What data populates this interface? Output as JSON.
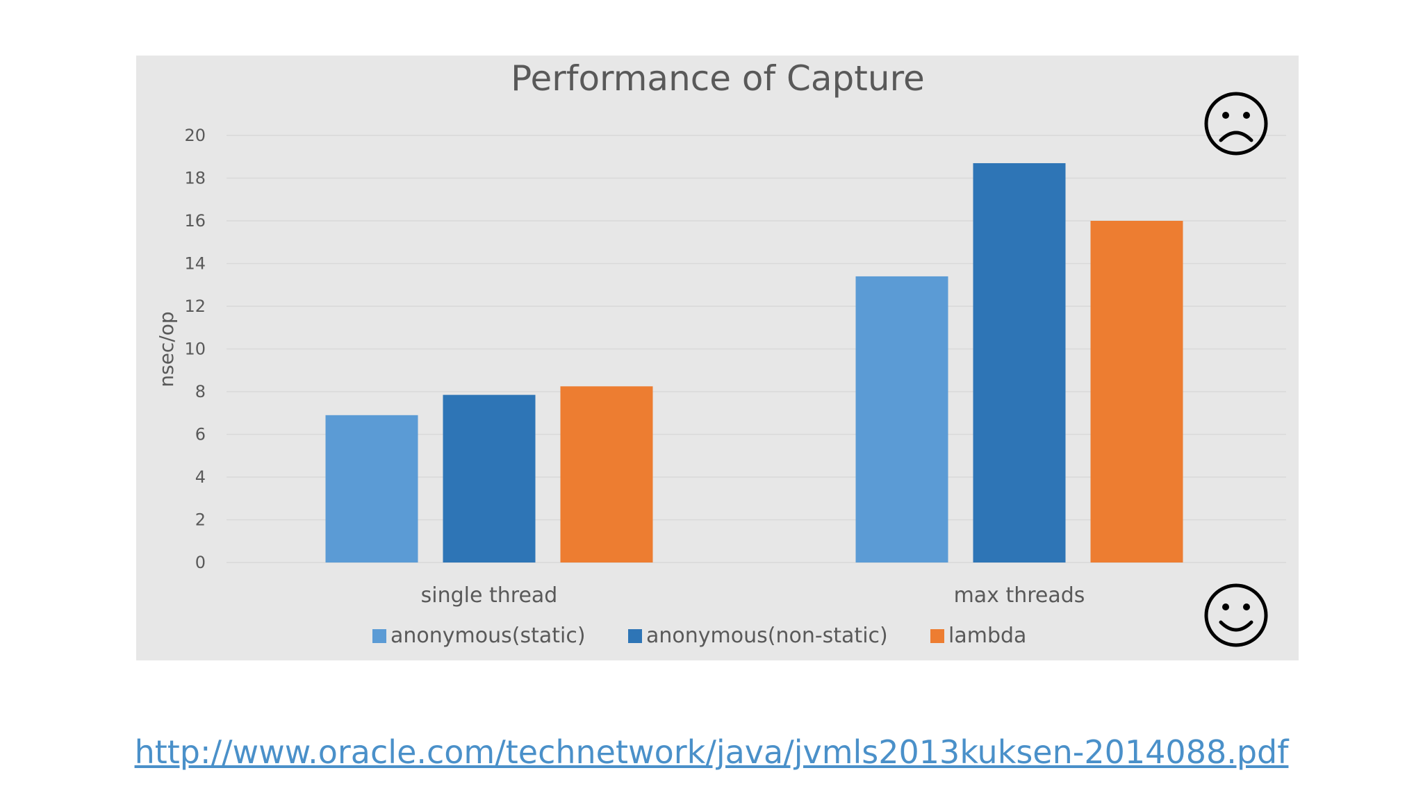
{
  "colors": {
    "panel_bg": "#e7e7e7",
    "grid": "#d9d9d9",
    "text": "#595959",
    "link": "#4a90c9"
  },
  "icons": {
    "top_right": "frown-face-icon",
    "bottom_right": "smile-face-icon"
  },
  "chart_data": {
    "type": "bar",
    "title": "Performance of Capture",
    "ylabel": "nsec/op",
    "xlabel": "",
    "ylim": [
      0,
      20
    ],
    "yticks": [
      0,
      2,
      4,
      6,
      8,
      10,
      12,
      14,
      16,
      18,
      20
    ],
    "grid": true,
    "legend_position": "bottom",
    "categories": [
      "single thread",
      "max threads"
    ],
    "series": [
      {
        "name": "anonymous(static)",
        "color": "#5b9bd5",
        "values": [
          6.9,
          13.4
        ]
      },
      {
        "name": "anonymous(non-static)",
        "color": "#2e75b6",
        "values": [
          7.85,
          18.7
        ]
      },
      {
        "name": "lambda",
        "color": "#ed7d31",
        "values": [
          8.25,
          16.0
        ]
      }
    ]
  },
  "footer": {
    "link_text": "http://www.oracle.com/technetwork/java/jvmls2013kuksen-2014088.pdf"
  }
}
